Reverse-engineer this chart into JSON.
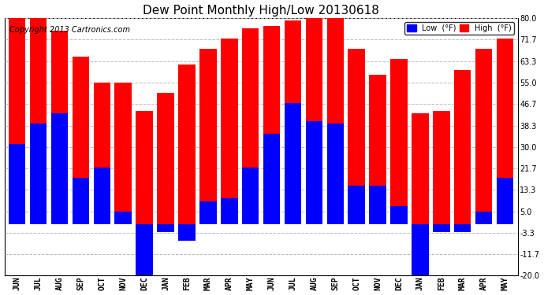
{
  "title": "Dew Point Monthly High/Low 20130618",
  "copyright": "Copyright 2013 Cartronics.com",
  "months": [
    "JUN",
    "JUL",
    "AUG",
    "SEP",
    "OCT",
    "NOV",
    "DEC",
    "JAN",
    "FEB",
    "MAR",
    "APR",
    "MAY",
    "JUN",
    "JUL",
    "AUG",
    "SEP",
    "OCT",
    "NOV",
    "DEC",
    "JAN",
    "FEB",
    "MAR",
    "APR",
    "MAY"
  ],
  "high_values": [
    80.0,
    80.0,
    75.0,
    65.0,
    55.0,
    55.0,
    44.0,
    51.0,
    62.0,
    68.0,
    72.0,
    76.0,
    77.0,
    79.0,
    80.0,
    80.0,
    68.0,
    58.0,
    64.0,
    43.0,
    44.0,
    60.0,
    68.0,
    72.0
  ],
  "low_values": [
    31.0,
    39.0,
    43.0,
    18.0,
    22.0,
    5.0,
    -20.0,
    -3.0,
    -6.5,
    9.0,
    10.0,
    22.0,
    35.0,
    47.0,
    40.0,
    39.0,
    15.0,
    15.0,
    7.0,
    -20.0,
    -3.0,
    -3.0,
    5.0,
    18.0
  ],
  "high_color": "#FF0000",
  "low_color": "#0000FF",
  "bg_color": "#FFFFFF",
  "plot_bg": "#FFFFFF",
  "ylim": [
    -20.0,
    80.0
  ],
  "yticks": [
    -20.0,
    -11.7,
    -3.3,
    5.0,
    13.3,
    21.7,
    30.0,
    38.3,
    46.7,
    55.0,
    63.3,
    71.7,
    80.0
  ],
  "grid_color": "#BBBBBB",
  "title_fontsize": 11,
  "copyright_fontsize": 7,
  "bar_width": 0.8
}
